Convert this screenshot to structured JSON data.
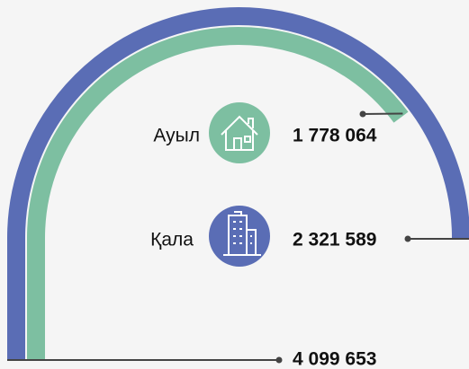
{
  "chart_data": {
    "type": "radial_bar",
    "categories": [
      "Ауыл",
      "Қала"
    ],
    "values": [
      1778064,
      2321589
    ],
    "value_labels": [
      "1 778 064",
      "2 321 589"
    ],
    "colors": [
      "#7dbfa1",
      "#5a6db5"
    ],
    "total": {
      "value": 4099653,
      "label": "4 099 653"
    }
  }
}
